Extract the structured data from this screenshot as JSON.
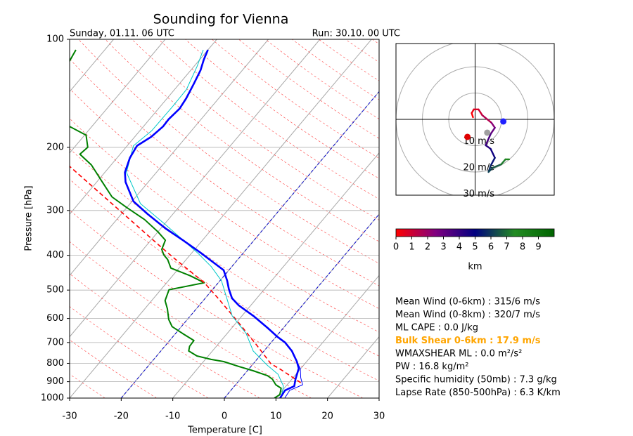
{
  "chart_data": [
    {
      "type": "skewt",
      "title": "Sounding for Vienna",
      "subtitle_left": "Sunday, 01.11. 06 UTC",
      "subtitle_right": "Run: 30.10. 00 UTC",
      "xlabel": "Temperature [C]",
      "ylabel": "Pressure [hPa]",
      "ylog": true,
      "grid": true,
      "xlim": [
        -30,
        30
      ],
      "xticks": [
        -30,
        -20,
        -10,
        0,
        10,
        20,
        30
      ],
      "ylim": [
        1000,
        100
      ],
      "yticks": [
        1000,
        900,
        800,
        700,
        600,
        500,
        400,
        300,
        200,
        100
      ],
      "dashed_isotherms": [
        -20,
        0
      ],
      "series": [
        {
          "color": "#008000",
          "pressure": [
            1000,
            978,
            939,
            918,
            885,
            866,
            839,
            817,
            791,
            780,
            763,
            739,
            717,
            691,
            661,
            632,
            604,
            564,
            535,
            499,
            477,
            456,
            434,
            411,
            399,
            385,
            363,
            344,
            318,
            294,
            275,
            250,
            224,
            209,
            200,
            185,
            175,
            140,
            115,
            107
          ],
          "values": [
            9.7,
            10.2,
            9.4,
            7.8,
            6.2,
            4.7,
            1.1,
            -2.3,
            -6.1,
            -8.9,
            -12.2,
            -14.6,
            -15.2,
            -15.3,
            -18.6,
            -21.8,
            -23.6,
            -25.6,
            -27.4,
            -28.4,
            -22.7,
            -26.6,
            -31.6,
            -33.6,
            -35.1,
            -36.4,
            -37.2,
            -40.0,
            -44.6,
            -50.1,
            -54.6,
            -58.9,
            -63.8,
            -67.8,
            -67.4,
            -69.7,
            -74.3,
            -88.1,
            -85.0,
            -85.6
          ]
        },
        {
          "color": "#ff0000",
          "dashed": true,
          "pressure": [
            906,
            835,
            802,
            713,
            618,
            527,
            477,
            408,
            380,
            226
          ],
          "values": [
            12.3,
            6.5,
            3.4,
            -2.3,
            -9.4,
            -17.5,
            -22.7,
            -32.5,
            -36.8,
            -67.8
          ]
        },
        {
          "color": "#00c8c8",
          "pressure": [
            1000,
            926,
            858,
            809,
            739,
            661,
            590,
            471,
            430,
            393,
            328,
            287,
            235,
            198,
            180,
            154,
            138,
            119,
            107
          ],
          "values": [
            11.0,
            9.5,
            6.5,
            2.9,
            -2.1,
            -6.3,
            -11.9,
            -19.7,
            -24.0,
            -29.0,
            -39.8,
            -48.0,
            -55.8,
            -58.8,
            -57.7,
            -57.6,
            -57.7,
            -59.4,
            -60.9
          ]
        },
        {
          "color": "#0000ff",
          "pressure": [
            1000,
            952,
            918,
            878,
            827,
            780
          ],
          "values": [
            11.7,
            11.4,
            13.0,
            11.5,
            9.9,
            7.5
          ]
        },
        {
          "color": "#0000ff",
          "pressure": [
            1000,
            952,
            926,
            885,
            827,
            791,
            739,
            700,
            676,
            637,
            590,
            552,
            527,
            497,
            471,
            440,
            421,
            393,
            363,
            336,
            307,
            283,
            250,
            235,
            214,
            198,
            187,
            175,
            167,
            156,
            146,
            133,
            122,
            114,
            107
          ],
          "values": [
            10.8,
            10.5,
            11.6,
            10.7,
            9.6,
            8.1,
            5.4,
            2.7,
            0.4,
            -3.1,
            -7.8,
            -12.3,
            -14.8,
            -16.9,
            -18.6,
            -21.0,
            -23.9,
            -28.4,
            -33.8,
            -39.2,
            -44.9,
            -49.7,
            -54.4,
            -56.1,
            -57.5,
            -58.1,
            -56.8,
            -56.2,
            -56.3,
            -55.9,
            -56.3,
            -57.2,
            -58.1,
            -59.2,
            -60.0
          ]
        }
      ]
    },
    {
      "type": "hodograph",
      "xlim": [
        -30,
        30
      ],
      "ylim": [
        -29,
        29
      ],
      "rings": [
        {
          "value": 10,
          "label": "10 m/s"
        },
        {
          "value": 20,
          "label": "20 m/s"
        },
        {
          "value": 30,
          "label": "30 m/s"
        }
      ],
      "u": [
        -0.8,
        -1.3,
        -0.5,
        1.3,
        2.7,
        6.2,
        7.5,
        5.9,
        4.0,
        5.9,
        7.5,
        5.9,
        5.1,
        6.7,
        9.9,
        11.5,
        12.9
      ],
      "v": [
        0.8,
        2.4,
        3.8,
        3.8,
        1.6,
        -1.3,
        -3.2,
        -5.6,
        -9.9,
        -11.3,
        -14.7,
        -17.7,
        -20.1,
        -18.5,
        -17.2,
        -15.3,
        -15.3
      ],
      "height": [
        0,
        0.3,
        0.6,
        1,
        1.5,
        2.3,
        3,
        3.6,
        4.2,
        4.7,
        5.3,
        5.8,
        6.2,
        6.6,
        7.2,
        7.8,
        8.2
      ],
      "markers": [
        {
          "u": 10.7,
          "v": -0.8,
          "color": "#2020ff"
        },
        {
          "u": -2.9,
          "v": -6.7,
          "color": "#e00000"
        },
        {
          "u": 4.6,
          "v": -5.1,
          "color": "#a0a0a0"
        }
      ],
      "colorbar": {
        "label": "km",
        "lim": [
          0,
          10
        ],
        "ticks": [
          0,
          1,
          2,
          3,
          4,
          5,
          6,
          7,
          8,
          9
        ],
        "colors": [
          "#ff0000",
          "#800080",
          "#000080",
          "#228b22",
          "#006400"
        ]
      }
    }
  ],
  "info": [
    {
      "text": "Mean Wind (0-6km) : 315/6 m/s"
    },
    {
      "text": "Mean Wind (0-8km) : 320/7 m/s"
    },
    {
      "text": "ML CAPE : 0.0 J/kg"
    },
    {
      "text": "Bulk Shear 0-6km : 17.9 m/s",
      "color": "#ffa500"
    },
    {
      "text": "WMAXSHEAR ML : 0.0 m²/s²"
    },
    {
      "text": "PW : 16.8 kg/m²"
    },
    {
      "text": "Specific humidity (50mb) : 7.3 g/kg"
    },
    {
      "text": "Lapse Rate (850-500hPa) : 6.3 K/km"
    }
  ]
}
